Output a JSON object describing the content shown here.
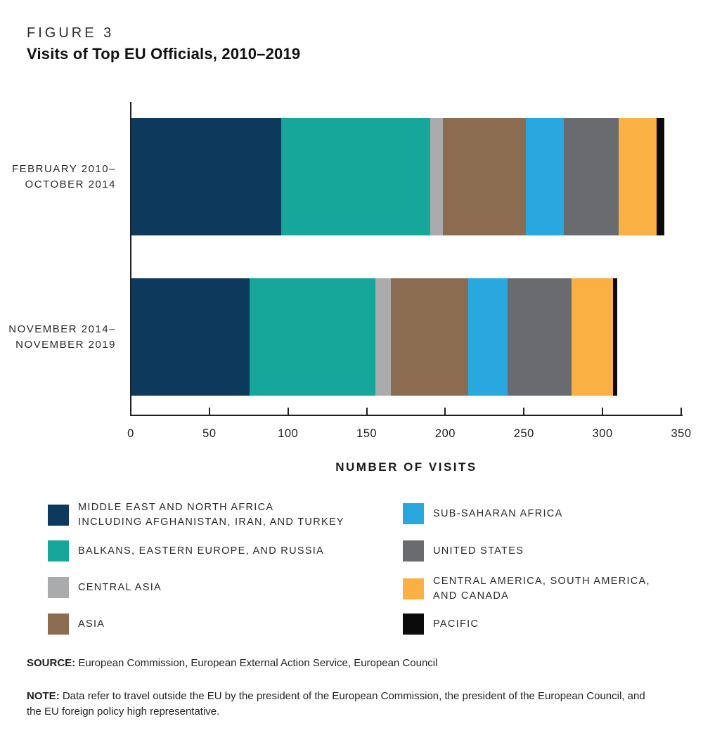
{
  "header": {
    "figure_label": "FIGURE 3",
    "title": "Visits of Top EU Officials, 2010–2019"
  },
  "chart_data": {
    "type": "bar",
    "orientation": "horizontal",
    "stacked": true,
    "title": "Visits of Top EU Officials, 2010–2019",
    "xlabel": "NUMBER OF VISITS",
    "xlim": [
      0,
      350
    ],
    "x_ticks": [
      0,
      50,
      100,
      150,
      200,
      250,
      300,
      350
    ],
    "grid": false,
    "legend_position": "bottom-two-columns",
    "categories": [
      "FEBRUARY 2010–\nOCTOBER 2014",
      "NOVEMBER 2014–\nNOVEMBER 2019"
    ],
    "series": [
      {
        "name": "MIDDLE EAST AND NORTH AFRICA INCLUDING AFGHANISTAN, IRAN, AND TURKEY",
        "color": "#0d3a5c",
        "values": [
          95,
          75
        ]
      },
      {
        "name": "BALKANS, EASTERN EUROPE, AND RUSSIA",
        "color": "#16a79a",
        "values": [
          95,
          80
        ]
      },
      {
        "name": "CENTRAL ASIA",
        "color": "#a9abac",
        "values": [
          8,
          10
        ]
      },
      {
        "name": "ASIA",
        "color": "#8b6c51",
        "values": [
          53,
          49
        ]
      },
      {
        "name": "SUB-SAHARAN AFRICA",
        "color": "#29a8e0",
        "values": [
          24,
          25
        ]
      },
      {
        "name": "UNITED STATES",
        "color": "#6a6b6e",
        "values": [
          35,
          41
        ]
      },
      {
        "name": "CENTRAL AMERICA, SOUTH AMERICA, AND CANADA",
        "color": "#fbb044",
        "values": [
          24,
          26
        ]
      },
      {
        "name": "PACIFIC",
        "color": "#0b0b0b",
        "values": [
          5,
          3
        ]
      }
    ],
    "totals": [
      339,
      309
    ]
  },
  "legend": {
    "left_column": [
      {
        "lines": [
          "MIDDLE EAST AND NORTH AFRICA",
          "INCLUDING AFGHANISTAN, IRAN, AND TURKEY"
        ],
        "color": "#0d3a5c"
      },
      {
        "lines": [
          "BALKANS, EASTERN EUROPE, AND RUSSIA"
        ],
        "color": "#16a79a"
      },
      {
        "lines": [
          "CENTRAL ASIA"
        ],
        "color": "#a9abac"
      },
      {
        "lines": [
          "ASIA"
        ],
        "color": "#8b6c51"
      }
    ],
    "right_column": [
      {
        "lines": [
          "SUB-SAHARAN AFRICA"
        ],
        "color": "#29a8e0"
      },
      {
        "lines": [
          "UNITED STATES"
        ],
        "color": "#6a6b6e"
      },
      {
        "lines": [
          "CENTRAL AMERICA, SOUTH AMERICA,",
          "AND CANADA"
        ],
        "color": "#fbb044"
      },
      {
        "lines": [
          "PACIFIC"
        ],
        "color": "#0b0b0b"
      }
    ]
  },
  "axis": {
    "title": "NUMBER OF VISITS",
    "tick_labels": [
      "0",
      "50",
      "100",
      "150",
      "200",
      "250",
      "300",
      "350"
    ]
  },
  "footer": {
    "source_label": "SOURCE:",
    "source_text": " European Commission, European External Action Service, European Council",
    "note_label": "NOTE:",
    "note_text": " Data refer to travel outside the EU by the president of the European Commission, the president of the European Council, and the EU foreign policy high representative."
  }
}
